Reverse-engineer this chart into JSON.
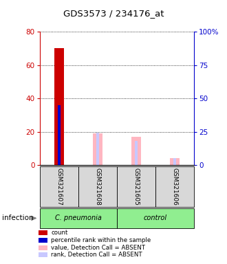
{
  "title": "GDS3573 / 234176_at",
  "samples": [
    "GSM321607",
    "GSM321608",
    "GSM321605",
    "GSM321606"
  ],
  "groups_info": [
    {
      "label": "C. pneumonia",
      "start": 0,
      "end": 2,
      "color": "#90ee90"
    },
    {
      "label": "control",
      "start": 2,
      "end": 4,
      "color": "#90ee90"
    }
  ],
  "infection_label": "infection",
  "count_values": [
    70,
    0,
    0,
    0
  ],
  "percentile_rank_values": [
    45,
    0,
    0,
    0
  ],
  "absent_value_values": [
    0,
    19,
    17,
    4
  ],
  "absent_rank_values": [
    0,
    24,
    18,
    5
  ],
  "left_ylim": [
    0,
    80
  ],
  "left_yticks": [
    0,
    20,
    40,
    60,
    80
  ],
  "right_ylim": [
    0,
    100
  ],
  "right_yticks": [
    0,
    25,
    50,
    75,
    100
  ],
  "left_color": "#cc0000",
  "right_color": "#0000cc",
  "count_color": "#cc0000",
  "percentile_color": "#0000cc",
  "absent_value_color": "#ffb6c1",
  "absent_rank_color": "#c8c8ff",
  "background_plot": "#d8d8d8",
  "legend_items": [
    "count",
    "percentile rank within the sample",
    "value, Detection Call = ABSENT",
    "rank, Detection Call = ABSENT"
  ],
  "legend_colors": [
    "#cc0000",
    "#0000cc",
    "#ffb6c1",
    "#c8c8ff"
  ]
}
